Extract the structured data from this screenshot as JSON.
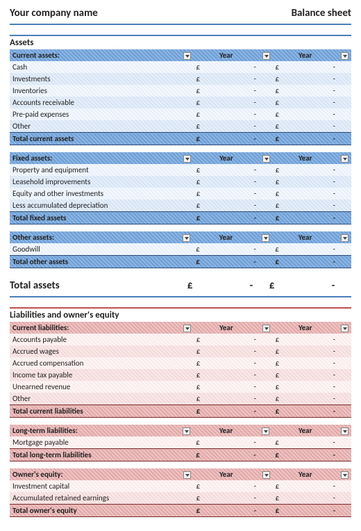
{
  "header": {
    "company": "Your company name",
    "title": "Balance sheet"
  },
  "currency": "£",
  "dash": "-",
  "yearLabel": "Year",
  "assets": {
    "sectionTitle": "Assets",
    "grandTotalLabel": "Total assets",
    "groups": [
      {
        "header": "Current assets:",
        "totalLabel": "Total current assets",
        "rows": [
          "Cash",
          "Investments",
          "Inventories",
          "Accounts receivable",
          "Pre-paid expenses",
          "Other"
        ]
      },
      {
        "header": "Fixed assets:",
        "totalLabel": "Total fixed assets",
        "rows": [
          "Property and equipment",
          "Leasehold improvements",
          "Equity and other investments",
          "Less accumulated depreciation"
        ]
      },
      {
        "header": "Other assets:",
        "totalLabel": "Total other assets",
        "rows": [
          "Goodwill"
        ]
      }
    ]
  },
  "liabilities": {
    "sectionTitle": "Liabilities and owner's equity",
    "groups": [
      {
        "header": "Current liabilities:",
        "totalLabel": "Total current liabilities",
        "rows": [
          "Accounts payable",
          "Accrued wages",
          "Accrued compensation",
          "Income tax payable",
          "Unearned revenue",
          "Other"
        ]
      },
      {
        "header": "Long-term liabilities:",
        "totalLabel": "Total long-term liabilities",
        "rows": [
          "Mortgage payable"
        ]
      },
      {
        "header": "Owner's equity:",
        "totalLabel": "Total owner's equity",
        "rows": [
          "Investment capital",
          "Accumulated retained earnings"
        ]
      }
    ]
  },
  "colors": {
    "blue_rule": "#4a7ebb",
    "blue_dark": "#6e9ed6",
    "blue_lt": "#e8f0fb",
    "blue_md": "#d6e4f5",
    "red_rule": "#c05050",
    "red_dark": "#e2a8a8",
    "red_lt": "#faecec",
    "red_md": "#f4dada"
  }
}
